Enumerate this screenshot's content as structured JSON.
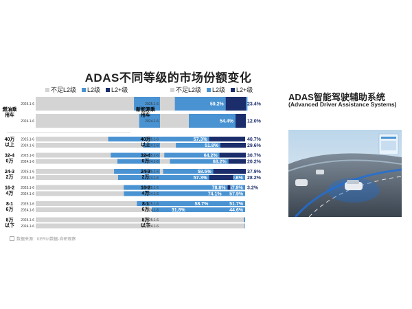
{
  "title": "ADAS不同等级的市场份额变化",
  "legend": {
    "items": [
      {
        "label": "不足L2级",
        "color": "#d4d4d4"
      },
      {
        "label": "L2级",
        "color": "#4a93d2"
      },
      {
        "label": "L2+级",
        "color": "#1b2d6b"
      }
    ]
  },
  "panel": {
    "title": "ADAS智能驾驶辅助系统",
    "subtitle": "(Advanced Driver Assistance Systems)"
  },
  "source": "数据来源：KERUI数据-自研观察",
  "chart_data": [
    {
      "type": "bar",
      "orientation": "horizontal-stacked-100",
      "segment_types": [
        "不足L2级",
        "L2级",
        "L2+级"
      ],
      "groups": [
        {
          "name": "燃油乘用车",
          "rows": [
            {
              "year": "2025.1-6",
              "values": [
                46.9,
                54.2,
                0
              ],
              "l2_label": "54.2%",
              "l2plus_label": ""
            },
            {
              "year": "2024.1-6",
              "values": [
                49.4,
                50.6,
                0
              ],
              "l2_label": "50.6%",
              "l2plus_label": ""
            }
          ]
        },
        {
          "name": "40万以上",
          "rows": [
            {
              "year": "2025.1-6",
              "values": [
                34.6,
                63.4,
                2.0
              ],
              "l2_label": "63.4%",
              "l2plus_label": ""
            },
            {
              "year": "2024.1-6",
              "values": [
                51.3,
                48.2,
                0.5
              ],
              "l2_label": "48.2%",
              "l2plus_label": ""
            }
          ]
        },
        {
          "name": "32-40万",
          "rows": [
            {
              "year": "2025.1-6",
              "values": [
                35.8,
                62.7,
                1.5
              ],
              "l2_label": "62.7%",
              "l2plus_label": ""
            },
            {
              "year": "2024.1-6",
              "values": [
                39.0,
                61.3,
                0
              ],
              "l2_label": "61.3%",
              "l2plus_label": ""
            }
          ]
        },
        {
          "name": "24-32万",
          "rows": [
            {
              "year": "2025.1-6",
              "values": [
                37.4,
                62.2,
                0.4
              ],
              "l2_label": "62.2%",
              "l2plus_label": ""
            },
            {
              "year": "2024.1-6",
              "values": [
                39.3,
                60.6,
                0.1
              ],
              "l2_label": "60.6%",
              "l2plus_label": ""
            }
          ]
        },
        {
          "name": "16-24万",
          "rows": [
            {
              "year": "2025.1-6",
              "values": [
                42.0,
                57.9,
                0.1
              ],
              "l2_label": "57.9%",
              "l2plus_label": ""
            },
            {
              "year": "2024.1-6",
              "values": [
                42.1,
                57.9,
                0
              ],
              "l2_label": "57.9%",
              "l2plus_label": ""
            }
          ]
        },
        {
          "name": "8-16万",
          "rows": [
            {
              "year": "2025.1-6",
              "values": [
                48.3,
                51.7,
                0
              ],
              "l2_label": "51.7%",
              "l2plus_label": ""
            },
            {
              "year": "2024.1-6",
              "values": [
                55.4,
                44.6,
                0
              ],
              "l2_label": "44.6%",
              "l2plus_label": ""
            }
          ]
        },
        {
          "name": "8万以下",
          "rows": [
            {
              "year": "2025.1-6",
              "values": [
                99.4,
                0.6,
                0
              ],
              "l2_label": "",
              "l2plus_label": ""
            },
            {
              "year": "2024.1-6",
              "values": [
                99.8,
                0.2,
                0
              ],
              "l2_label": "",
              "l2plus_label": ""
            }
          ]
        }
      ]
    },
    {
      "type": "bar",
      "orientation": "horizontal-stacked-100",
      "segment_types": [
        "不足L2级",
        "L2级",
        "L2+级"
      ],
      "groups": [
        {
          "name": "新能源乘用车",
          "rows": [
            {
              "year": "2025.1-6",
              "values": [
                17.4,
                59.2,
                23.4
              ],
              "l2_label": "59.2%",
              "l2plus_label": "23.4%"
            },
            {
              "year": "2024.1-6",
              "values": [
                33.6,
                54.4,
                12.0
              ],
              "l2_label": "54.4%",
              "l2plus_label": "12.0%"
            }
          ]
        },
        {
          "name": "40万以上",
          "rows": [
            {
              "year": "2025.1-6",
              "values": [
                0,
                57.3,
                40.7
              ],
              "l2_label": "57.3%",
              "l2plus_label": "40.7%"
            },
            {
              "year": "2024.1-6",
              "values": [
                18.6,
                51.8,
                29.6
              ],
              "l2_label": "51.8%",
              "l2plus_label": "29.6%"
            }
          ]
        },
        {
          "name": "32-40万",
          "rows": [
            {
              "year": "2025.1-6",
              "values": [
                5.1,
                64.2,
                30.7
              ],
              "l2_label": "64.2%",
              "l2plus_label": "30.7%"
            },
            {
              "year": "2024.1-6",
              "values": [
                11.6,
                68.2,
                20.2
              ],
              "l2_label": "68.2%",
              "l2plus_label": "20.2%"
            }
          ]
        },
        {
          "name": "24-32万",
          "rows": [
            {
              "year": "2025.1-6",
              "values": [
                3.6,
                58.5,
                37.9
              ],
              "l2_label": "58.5%",
              "l2plus_label": "37.9%"
            },
            {
              "year": "2024.1-6",
              "values": [
                0,
                57.3,
                28.2
              ],
              "l2_label": "57.3%",
              "l2plus_label": "28.2%"
            }
          ]
        },
        {
          "name": "16-24万",
          "rows": [
            {
              "year": "2025.1-6",
              "values": [
                0,
                78.8,
                3.2
              ],
              "l2_label": "78.8%",
              "l2plus_label": "3.2%"
            },
            {
              "year": "2024.1-6",
              "values": [
                0,
                74.1,
                0
              ],
              "l2_label": "74.1%",
              "l2plus_label": ""
            }
          ]
        },
        {
          "name": "8-16万",
          "rows": [
            {
              "year": "2025.1-6",
              "values": [
                0,
                58.7,
                0
              ],
              "l2_label": "58.7%",
              "l2plus_label": ""
            },
            {
              "year": "2024.1-6",
              "values": [
                0,
                31.8,
                0
              ],
              "l2_label": "31.8%",
              "l2plus_label": ""
            }
          ]
        },
        {
          "name": "8万以下",
          "rows": [
            {
              "year": "2025.1-6",
              "values": [
                0,
                0,
                0
              ],
              "l2_label": "",
              "l2plus_label": ""
            },
            {
              "year": "2024.1-6",
              "values": [
                0,
                0,
                0
              ],
              "l2_label": "",
              "l2plus_label": ""
            }
          ]
        }
      ]
    }
  ]
}
